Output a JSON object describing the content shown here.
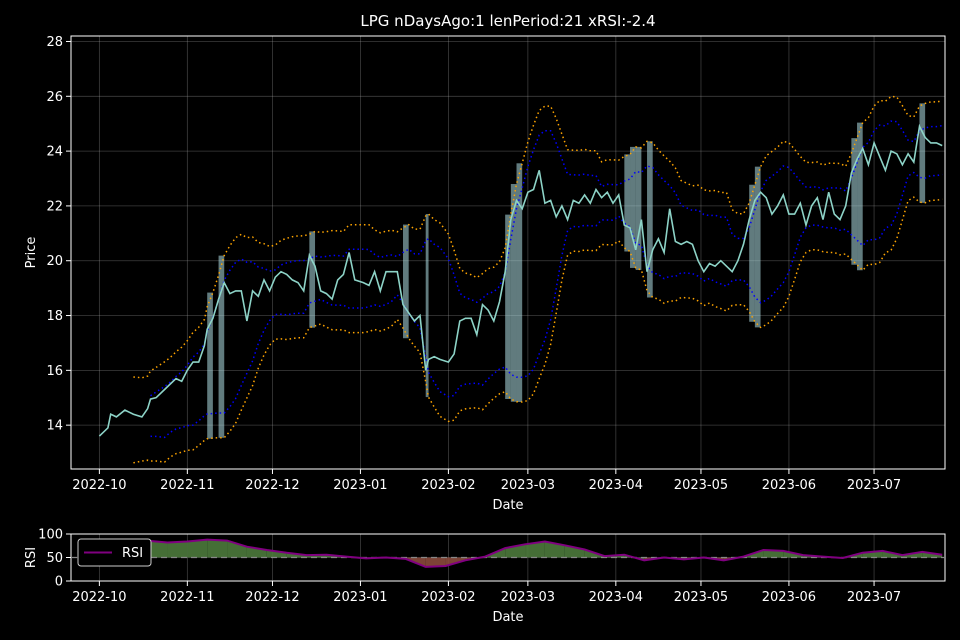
{
  "chart_data": [
    {
      "type": "line",
      "title": "LPG nDaysAgo:1 lenPeriod:21 xRSI:-2.4",
      "xlabel": "Date",
      "ylabel": "Price",
      "x_range": [
        "2022-09-21",
        "2023-07-26"
      ],
      "ylim": [
        12.4,
        28.2
      ],
      "x_ticks": [
        "2022-10",
        "2022-11",
        "2022-12",
        "2023-01",
        "2023-02",
        "2023-03",
        "2023-04",
        "2023-05",
        "2023-06",
        "2023-07"
      ],
      "y_ticks": [
        14,
        16,
        18,
        20,
        22,
        24,
        26,
        28
      ],
      "grid": true,
      "colors": {
        "price": "#8dd3c7",
        "bollinger": "#0000ff",
        "envelope": "#ffa500",
        "fill": "#b0e0e6",
        "background": "#000000",
        "text": "#ffffff"
      },
      "series": [
        {
          "key": "price",
          "values": [
            [
              "2022-10-01",
              13.6
            ],
            [
              "2022-10-04",
              13.9
            ],
            [
              "2022-10-05",
              14.4
            ],
            [
              "2022-10-07",
              14.3
            ],
            [
              "2022-10-10",
              14.55
            ],
            [
              "2022-10-13",
              14.4
            ],
            [
              "2022-10-16",
              14.3
            ],
            [
              "2022-10-18",
              14.6
            ],
            [
              "2022-10-19",
              14.95
            ],
            [
              "2022-10-21",
              15.0
            ],
            [
              "2022-10-24",
              15.3
            ],
            [
              "2022-10-26",
              15.5
            ],
            [
              "2022-10-28",
              15.7
            ],
            [
              "2022-10-30",
              15.6
            ],
            [
              "2022-11-01",
              16.0
            ],
            [
              "2022-11-03",
              16.3
            ],
            [
              "2022-11-05",
              16.3
            ],
            [
              "2022-11-07",
              16.9
            ],
            [
              "2022-11-08",
              17.5
            ],
            [
              "2022-11-10",
              17.9
            ],
            [
              "2022-11-12",
              18.6
            ],
            [
              "2022-11-14",
              19.2
            ],
            [
              "2022-11-16",
              18.8
            ],
            [
              "2022-11-18",
              18.9
            ],
            [
              "2022-11-20",
              18.9
            ],
            [
              "2022-11-22",
              17.8
            ],
            [
              "2022-11-24",
              18.9
            ],
            [
              "2022-11-26",
              18.7
            ],
            [
              "2022-11-28",
              19.3
            ],
            [
              "2022-11-30",
              18.9
            ],
            [
              "2022-12-02",
              19.4
            ],
            [
              "2022-12-04",
              19.6
            ],
            [
              "2022-12-06",
              19.5
            ],
            [
              "2022-12-08",
              19.3
            ],
            [
              "2022-12-10",
              19.2
            ],
            [
              "2022-12-12",
              18.9
            ],
            [
              "2022-12-14",
              20.2
            ],
            [
              "2022-12-16",
              19.8
            ],
            [
              "2022-12-18",
              18.9
            ],
            [
              "2022-12-20",
              18.8
            ],
            [
              "2022-12-22",
              18.6
            ],
            [
              "2022-12-24",
              19.3
            ],
            [
              "2022-12-26",
              19.5
            ],
            [
              "2022-12-28",
              20.3
            ],
            [
              "2022-12-30",
              19.3
            ],
            [
              "2023-01-02",
              19.2
            ],
            [
              "2023-01-04",
              19.1
            ],
            [
              "2023-01-06",
              19.6
            ],
            [
              "2023-01-08",
              18.9
            ],
            [
              "2023-01-10",
              19.6
            ],
            [
              "2023-01-12",
              19.6
            ],
            [
              "2023-01-14",
              19.6
            ],
            [
              "2023-01-16",
              18.4
            ],
            [
              "2023-01-18",
              18.1
            ],
            [
              "2023-01-20",
              17.8
            ],
            [
              "2023-01-22",
              18.0
            ],
            [
              "2023-01-24",
              16.0
            ],
            [
              "2023-01-25",
              16.4
            ],
            [
              "2023-01-27",
              16.5
            ],
            [
              "2023-01-29",
              16.4
            ],
            [
              "2023-02-01",
              16.3
            ],
            [
              "2023-02-03",
              16.6
            ],
            [
              "2023-02-05",
              17.8
            ],
            [
              "2023-02-07",
              17.9
            ],
            [
              "2023-02-09",
              17.9
            ],
            [
              "2023-02-11",
              17.3
            ],
            [
              "2023-02-13",
              18.4
            ],
            [
              "2023-02-15",
              18.2
            ],
            [
              "2023-02-17",
              17.8
            ],
            [
              "2023-02-19",
              18.5
            ],
            [
              "2023-02-21",
              19.6
            ],
            [
              "2023-02-23",
              21.5
            ],
            [
              "2023-02-25",
              22.2
            ],
            [
              "2023-02-27",
              21.9
            ],
            [
              "2023-03-01",
              22.5
            ],
            [
              "2023-03-03",
              22.6
            ],
            [
              "2023-03-05",
              23.3
            ],
            [
              "2023-03-07",
              22.1
            ],
            [
              "2023-03-09",
              22.2
            ],
            [
              "2023-03-11",
              21.6
            ],
            [
              "2023-03-13",
              22.0
            ],
            [
              "2023-03-15",
              21.5
            ],
            [
              "2023-03-17",
              22.2
            ],
            [
              "2023-03-19",
              22.1
            ],
            [
              "2023-03-21",
              22.4
            ],
            [
              "2023-03-23",
              22.1
            ],
            [
              "2023-03-25",
              22.6
            ],
            [
              "2023-03-27",
              22.3
            ],
            [
              "2023-03-29",
              22.5
            ],
            [
              "2023-03-31",
              22.1
            ],
            [
              "2023-04-02",
              22.4
            ],
            [
              "2023-04-04",
              21.3
            ],
            [
              "2023-04-06",
              21.2
            ],
            [
              "2023-04-08",
              20.4
            ],
            [
              "2023-04-10",
              21.5
            ],
            [
              "2023-04-12",
              19.6
            ],
            [
              "2023-04-14",
              20.4
            ],
            [
              "2023-04-16",
              20.8
            ],
            [
              "2023-04-18",
              20.3
            ],
            [
              "2023-04-20",
              21.9
            ],
            [
              "2023-04-22",
              20.7
            ],
            [
              "2023-04-24",
              20.6
            ],
            [
              "2023-04-26",
              20.7
            ],
            [
              "2023-04-28",
              20.6
            ],
            [
              "2023-04-30",
              20.0
            ],
            [
              "2023-05-02",
              19.6
            ],
            [
              "2023-05-04",
              19.9
            ],
            [
              "2023-05-06",
              19.8
            ],
            [
              "2023-05-08",
              20.0
            ],
            [
              "2023-05-10",
              19.8
            ],
            [
              "2023-05-12",
              19.6
            ],
            [
              "2023-05-14",
              20.0
            ],
            [
              "2023-05-16",
              20.6
            ],
            [
              "2023-05-18",
              21.5
            ],
            [
              "2023-05-20",
              22.2
            ],
            [
              "2023-05-22",
              22.5
            ],
            [
              "2023-05-24",
              22.3
            ],
            [
              "2023-05-26",
              21.7
            ],
            [
              "2023-05-28",
              22.0
            ],
            [
              "2023-05-30",
              22.4
            ],
            [
              "2023-06-01",
              21.7
            ],
            [
              "2023-06-03",
              21.7
            ],
            [
              "2023-06-05",
              22.1
            ],
            [
              "2023-06-07",
              21.3
            ],
            [
              "2023-06-09",
              22.0
            ],
            [
              "2023-06-11",
              22.3
            ],
            [
              "2023-06-13",
              21.5
            ],
            [
              "2023-06-15",
              22.5
            ],
            [
              "2023-06-17",
              21.7
            ],
            [
              "2023-06-19",
              21.5
            ],
            [
              "2023-06-21",
              22.0
            ],
            [
              "2023-06-23",
              23.2
            ],
            [
              "2023-06-25",
              23.7
            ],
            [
              "2023-06-27",
              24.1
            ],
            [
              "2023-06-29",
              23.5
            ],
            [
              "2023-07-01",
              24.3
            ],
            [
              "2023-07-03",
              23.8
            ],
            [
              "2023-07-05",
              23.3
            ],
            [
              "2023-07-07",
              24.0
            ],
            [
              "2023-07-09",
              23.9
            ],
            [
              "2023-07-11",
              23.5
            ],
            [
              "2023-07-13",
              23.9
            ],
            [
              "2023-07-15",
              23.6
            ],
            [
              "2023-07-17",
              24.9
            ],
            [
              "2023-07-19",
              24.5
            ],
            [
              "2023-07-21",
              24.3
            ],
            [
              "2023-07-23",
              24.3
            ],
            [
              "2023-07-25",
              24.2
            ]
          ]
        }
      ]
    },
    {
      "type": "area",
      "xlabel": "Date",
      "ylabel": "RSI",
      "ylim": [
        0,
        100
      ],
      "y_ticks": [
        0,
        50,
        100
      ],
      "x_ticks": [
        "2022-10",
        "2022-11",
        "2022-12",
        "2023-01",
        "2023-02",
        "2023-03",
        "2023-04",
        "2023-05",
        "2023-06",
        "2023-07"
      ],
      "reference_line": 50,
      "legend": "top-left",
      "colors": {
        "rsi_line": "#800080",
        "above_fill": "#4c7a3c",
        "below_fill": "#8b4a3c"
      },
      "series": [
        {
          "name": "RSI",
          "values": [
            [
              "2022-10-19",
              85
            ],
            [
              "2022-10-25",
              82
            ],
            [
              "2022-11-01",
              84
            ],
            [
              "2022-11-08",
              88
            ],
            [
              "2022-11-15",
              86
            ],
            [
              "2022-11-22",
              73
            ],
            [
              "2022-11-29",
              66
            ],
            [
              "2022-12-06",
              60
            ],
            [
              "2022-12-13",
              55
            ],
            [
              "2022-12-20",
              56
            ],
            [
              "2022-12-27",
              52
            ],
            [
              "2023-01-03",
              48
            ],
            [
              "2023-01-10",
              50
            ],
            [
              "2023-01-17",
              47
            ],
            [
              "2023-01-24",
              30
            ],
            [
              "2023-01-31",
              32
            ],
            [
              "2023-02-07",
              44
            ],
            [
              "2023-02-14",
              52
            ],
            [
              "2023-02-21",
              70
            ],
            [
              "2023-02-28",
              78
            ],
            [
              "2023-03-07",
              84
            ],
            [
              "2023-03-14",
              76
            ],
            [
              "2023-03-21",
              67
            ],
            [
              "2023-03-28",
              53
            ],
            [
              "2023-04-04",
              56
            ],
            [
              "2023-04-11",
              44
            ],
            [
              "2023-04-18",
              50
            ],
            [
              "2023-04-25",
              46
            ],
            [
              "2023-05-02",
              50
            ],
            [
              "2023-05-09",
              44
            ],
            [
              "2023-05-16",
              52
            ],
            [
              "2023-05-23",
              66
            ],
            [
              "2023-05-30",
              64
            ],
            [
              "2023-06-06",
              55
            ],
            [
              "2023-06-13",
              52
            ],
            [
              "2023-06-20",
              49
            ],
            [
              "2023-06-27",
              60
            ],
            [
              "2023-07-04",
              64
            ],
            [
              "2023-07-11",
              55
            ],
            [
              "2023-07-18",
              62
            ],
            [
              "2023-07-25",
              56
            ]
          ]
        }
      ]
    }
  ]
}
